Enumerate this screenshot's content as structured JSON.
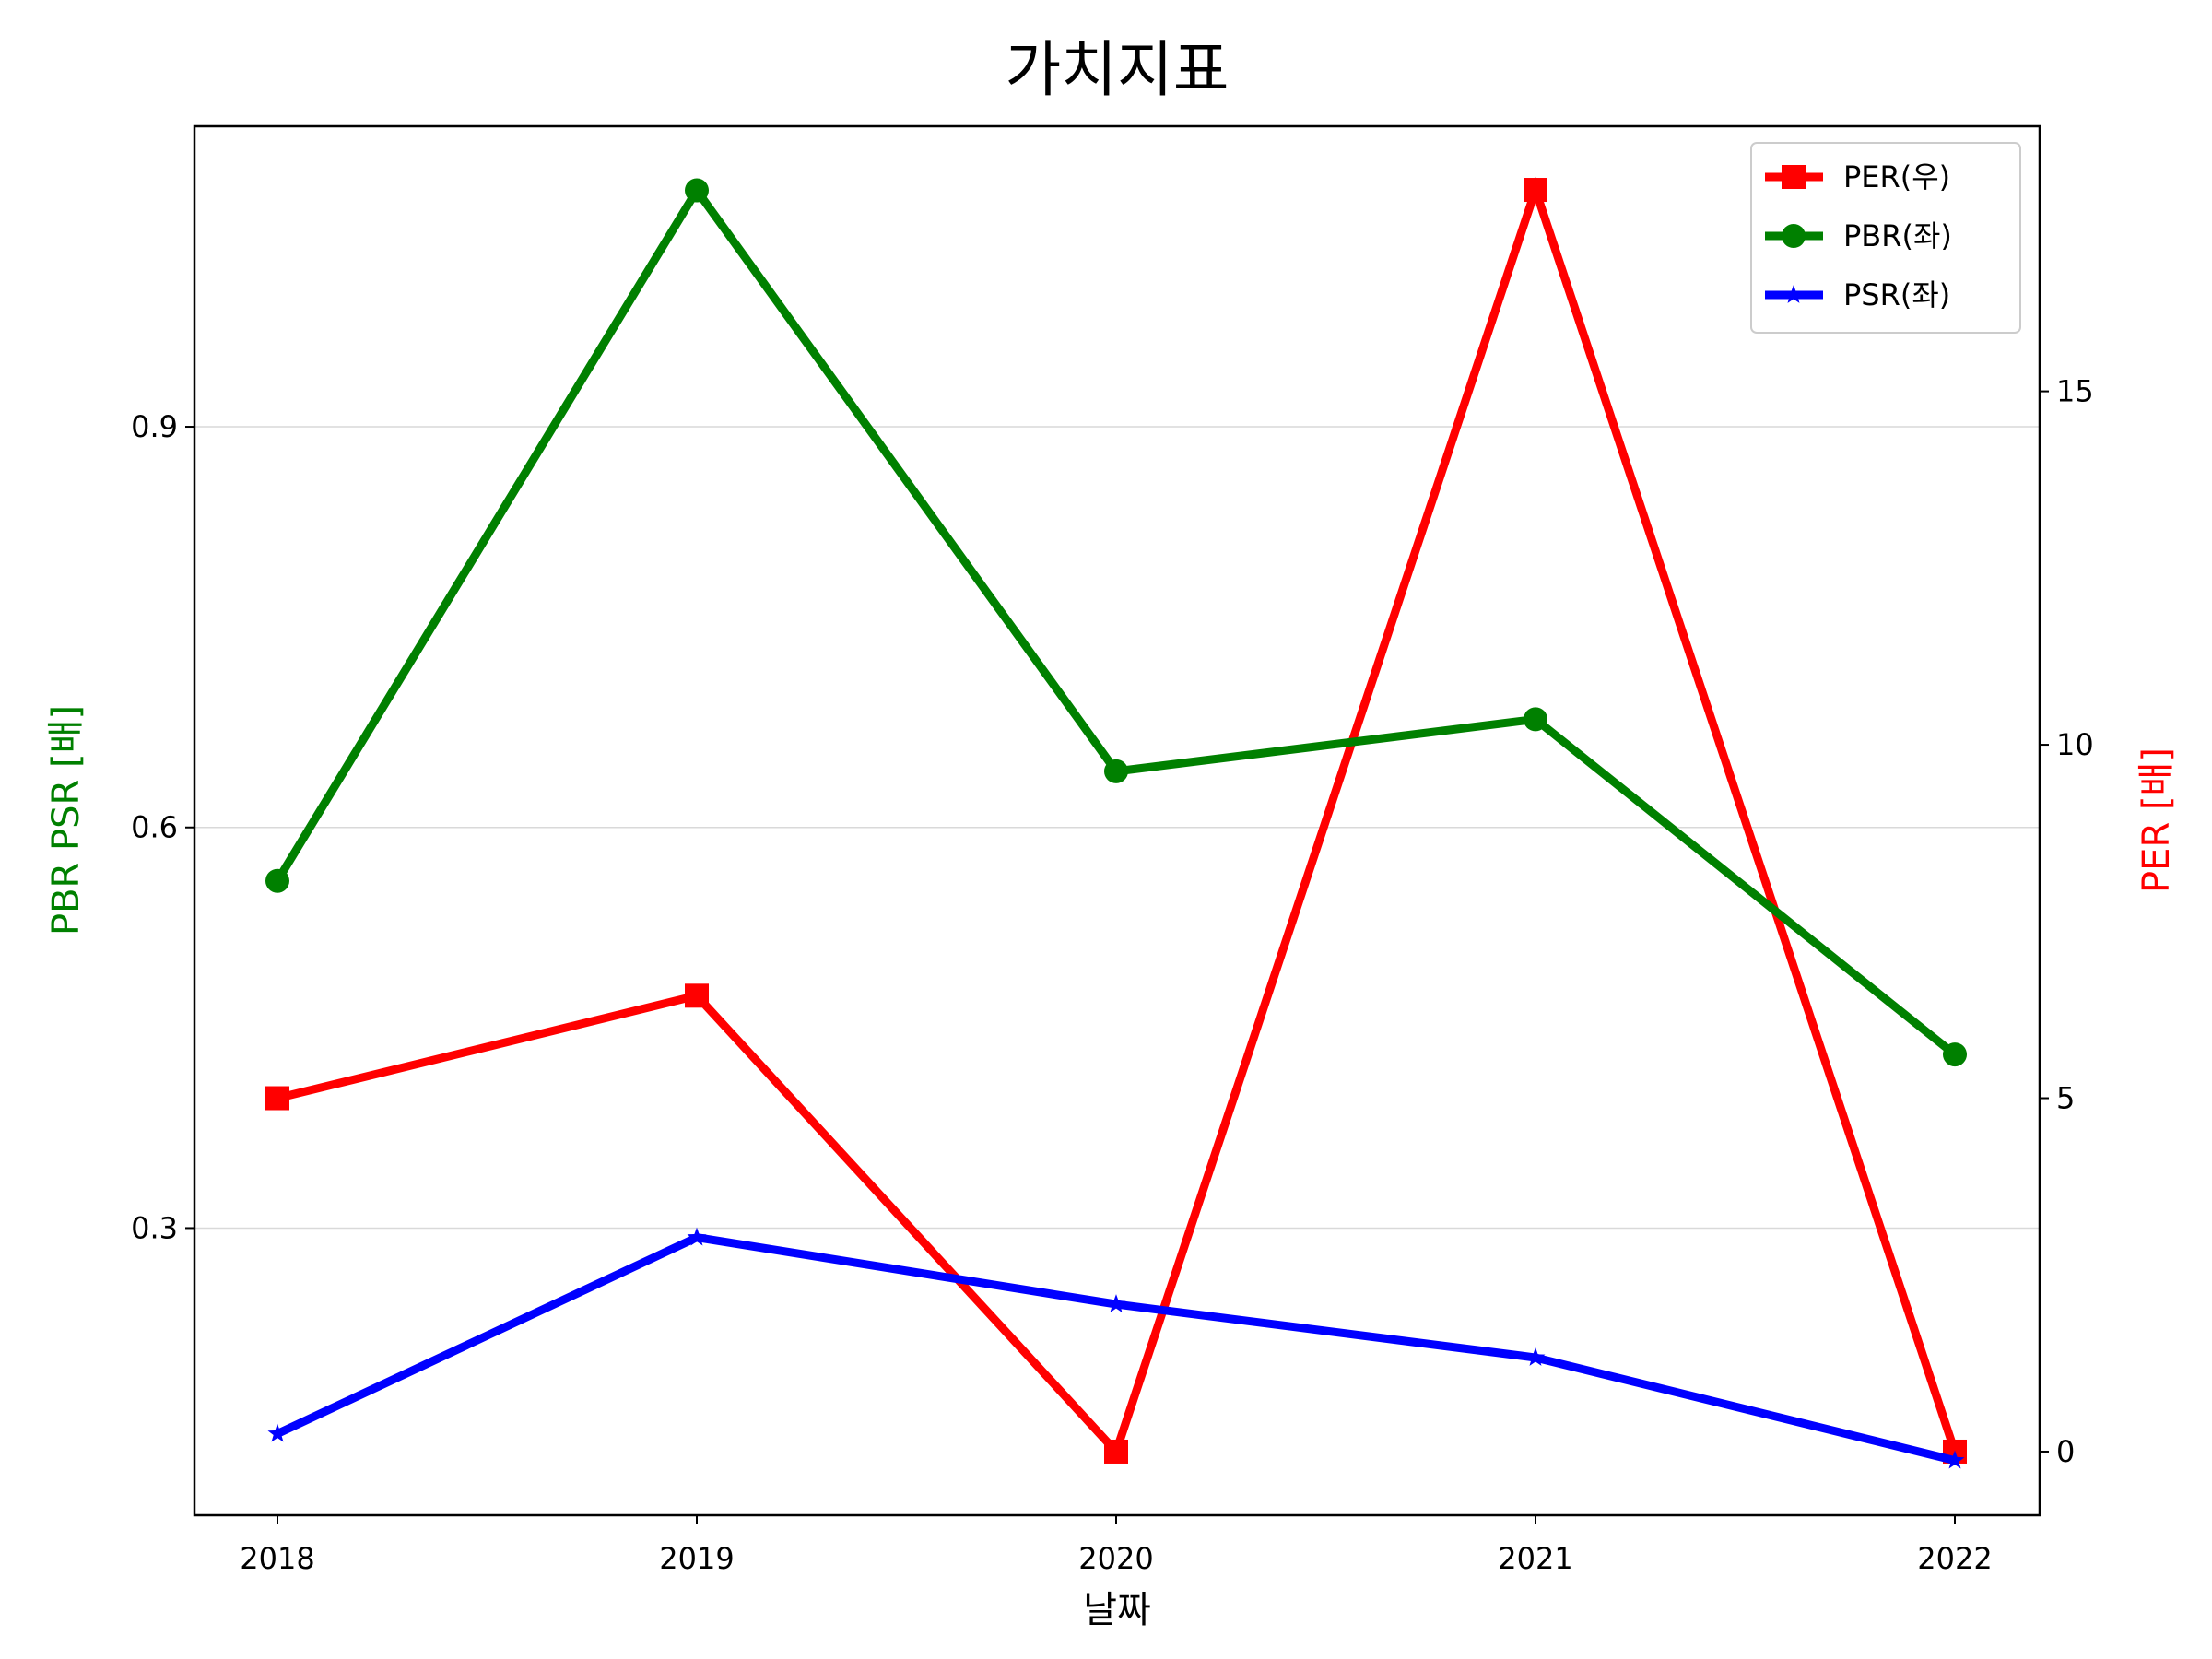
{
  "chart_data": {
    "type": "line",
    "title": "가치지표",
    "xlabel": "날짜",
    "ylabel_left": "PBR PSR [배]",
    "ylabel_right": "PER [배]",
    "x": [
      "2018",
      "2019",
      "2020",
      "2021",
      "2022"
    ],
    "left_axis": {
      "ylim": [
        0.085,
        1.125
      ],
      "ticks": [
        "0.3",
        "0.6",
        "0.9"
      ],
      "tick_values": [
        0.3,
        0.6,
        0.9
      ],
      "grid": true
    },
    "right_axis": {
      "ylim": [
        -0.9,
        18.75
      ],
      "ticks": [
        "0",
        "5",
        "10",
        "15"
      ],
      "tick_values": [
        0,
        5,
        10,
        15
      ]
    },
    "legend_position": "top-right",
    "series": [
      {
        "name": "PER(우)",
        "axis": "right",
        "color": "#ff0000",
        "marker": "square",
        "values": [
          5.0,
          6.45,
          0.0,
          17.85,
          0.0
        ]
      },
      {
        "name": "PBR(좌)",
        "axis": "left",
        "color": "#008000",
        "marker": "circle",
        "values": [
          0.56,
          1.077,
          0.642,
          0.681,
          0.43
        ]
      },
      {
        "name": "PSR(좌)",
        "axis": "left",
        "color": "#0000ff",
        "marker": "star",
        "values": [
          0.146,
          0.293,
          0.243,
          0.203,
          0.126
        ]
      }
    ]
  }
}
